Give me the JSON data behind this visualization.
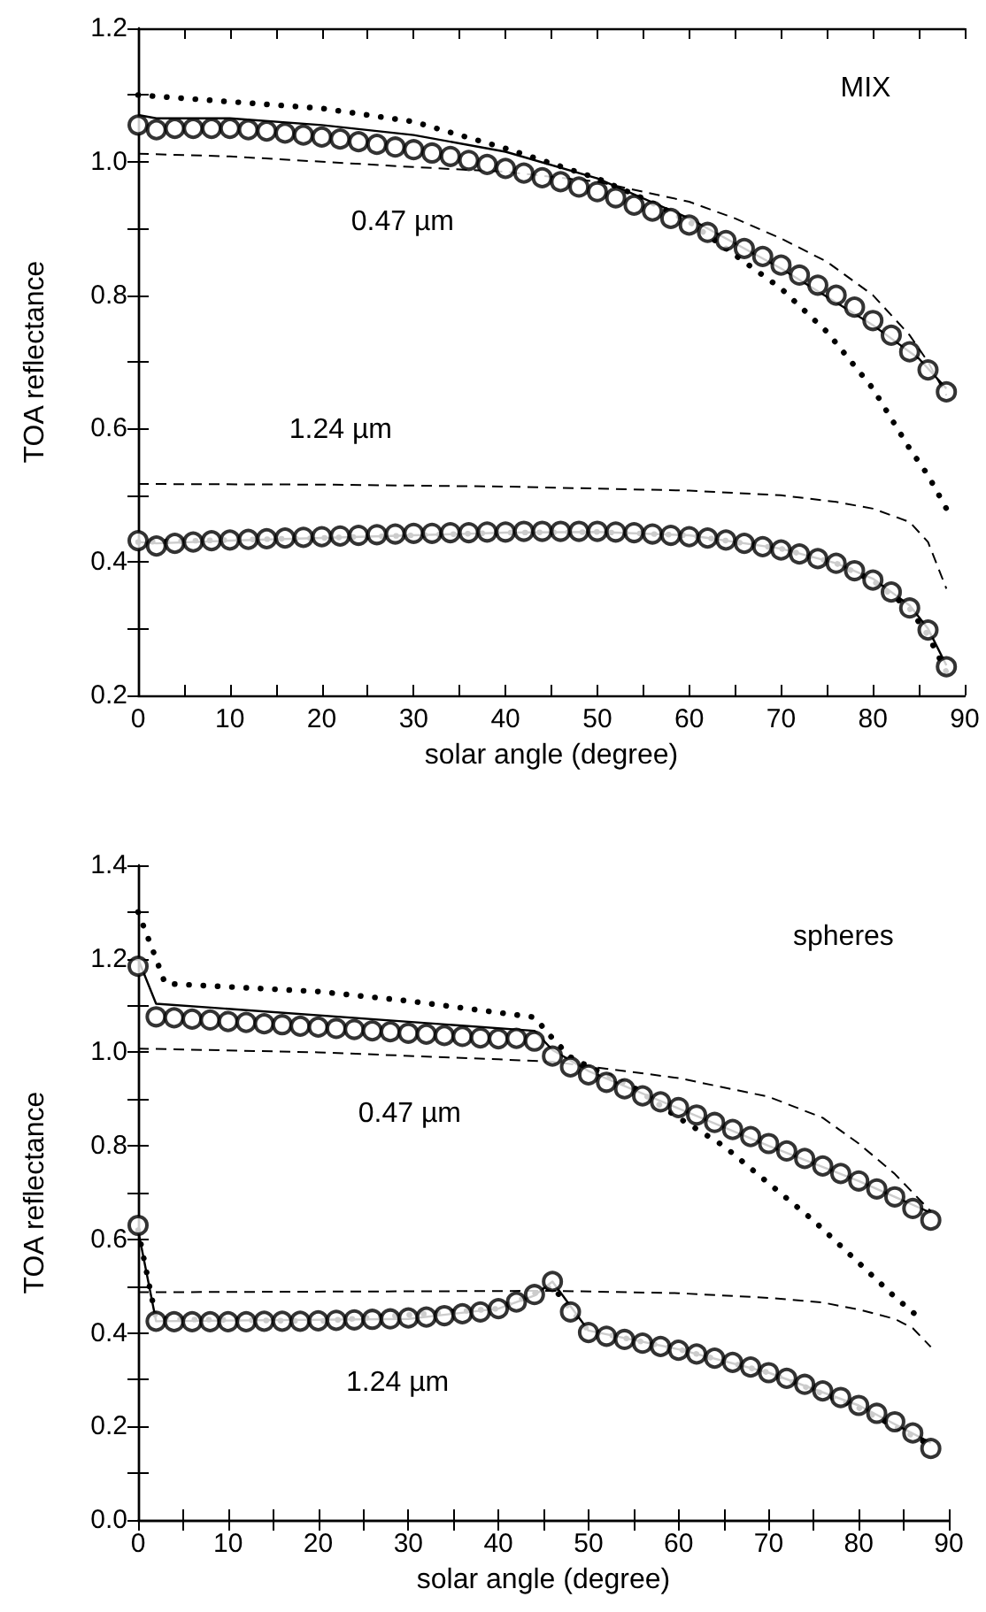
{
  "chart_data": [
    {
      "type": "line",
      "xlabel": "solar angle (degree)",
      "ylabel": "TOA reflectance",
      "xlim": [
        0,
        90
      ],
      "xticks": [
        0,
        {
          "value": 5,
          "label": null
        },
        10,
        {
          "value": 15,
          "label": null
        },
        20,
        {
          "value": 25,
          "label": null
        },
        30,
        {
          "value": 35,
          "label": null
        },
        40,
        {
          "value": 45,
          "label": null
        },
        50,
        {
          "value": 55,
          "label": null
        },
        60,
        {
          "value": 65,
          "label": null
        },
        70,
        {
          "value": 75,
          "label": null
        },
        80,
        {
          "value": 85,
          "label": null
        },
        90
      ],
      "ylim": [
        0.2,
        1.2
      ],
      "yticks": [
        0.2,
        {
          "value": 0.3,
          "label": null
        },
        0.4,
        {
          "value": 0.5,
          "label": null
        },
        0.6,
        {
          "value": 0.7,
          "label": null
        },
        0.8,
        {
          "value": 0.9,
          "label": null
        },
        {
          "value": 1,
          "label": "1.0"
        },
        {
          "value": 1.1,
          "label": null
        },
        1.2
      ],
      "annotations": [
        "MIX",
        "0.47 µm",
        "1.24 µm"
      ],
      "series": [
        {
          "type": "line",
          "line_style": "dotted",
          "color": "#000000",
          "x": [
            0,
            10,
            20,
            30,
            40,
            50,
            55,
            60,
            65,
            70,
            75,
            80,
            84,
            86,
            88
          ],
          "values": [
            1.1,
            1.09,
            1.08,
            1.06,
            1.02,
            0.975,
            0.945,
            0.91,
            0.86,
            0.81,
            0.745,
            0.66,
            0.57,
            0.53,
            0.48
          ]
        },
        {
          "type": "line",
          "line_style": "dashed",
          "color": "#000000",
          "x": [
            0,
            10,
            20,
            30,
            40,
            50,
            60,
            65,
            70,
            75,
            80,
            84,
            86,
            88
          ],
          "values": [
            1.012,
            1.008,
            1.0,
            0.992,
            0.985,
            0.97,
            0.94,
            0.915,
            0.885,
            0.85,
            0.8,
            0.74,
            0.7,
            0.65
          ]
        },
        {
          "type": "line",
          "line_style": "solid",
          "color": "#000000",
          "x": [
            0,
            2,
            10,
            20,
            30,
            40,
            50,
            60,
            70,
            80,
            85,
            88
          ],
          "values": [
            1.07,
            1.065,
            1.065,
            1.055,
            1.04,
            1.015,
            0.975,
            0.915,
            0.84,
            0.755,
            0.705,
            0.66
          ]
        },
        {
          "type": "scatter",
          "marker": "circle",
          "color": "#000000",
          "x": [
            0,
            2,
            4,
            6,
            8,
            10,
            12,
            14,
            16,
            18,
            20,
            22,
            24,
            26,
            28,
            30,
            32,
            34,
            36,
            38,
            40,
            42,
            44,
            46,
            48,
            50,
            52,
            54,
            56,
            58,
            60,
            62,
            64,
            66,
            68,
            70,
            72,
            74,
            76,
            78,
            80,
            82,
            84,
            86,
            88
          ],
          "values": [
            1.055,
            1.048,
            1.05,
            1.05,
            1.05,
            1.05,
            1.048,
            1.046,
            1.043,
            1.04,
            1.037,
            1.034,
            1.03,
            1.026,
            1.022,
            1.018,
            1.013,
            1.008,
            1.002,
            0.996,
            0.99,
            0.983,
            0.976,
            0.97,
            0.962,
            0.955,
            0.946,
            0.935,
            0.926,
            0.915,
            0.905,
            0.894,
            0.882,
            0.87,
            0.858,
            0.845,
            0.83,
            0.815,
            0.8,
            0.782,
            0.762,
            0.74,
            0.715,
            0.688,
            0.655
          ]
        },
        {
          "type": "line",
          "line_style": "dotted",
          "color": "#000000",
          "x": [
            0,
            10,
            20,
            30,
            40,
            50,
            60,
            70,
            76,
            80,
            84,
            86,
            88
          ],
          "values": [
            0.43,
            0.433,
            0.436,
            0.44,
            0.444,
            0.445,
            0.44,
            0.42,
            0.398,
            0.372,
            0.33,
            0.29,
            0.235
          ]
        },
        {
          "type": "line",
          "line_style": "dashed",
          "color": "#000000",
          "x": [
            0,
            20,
            40,
            60,
            70,
            76,
            80,
            84,
            86,
            88
          ],
          "values": [
            0.517,
            0.516,
            0.513,
            0.507,
            0.5,
            0.49,
            0.48,
            0.46,
            0.43,
            0.36
          ]
        },
        {
          "type": "line",
          "line_style": "solid",
          "color": "#000000",
          "x": [
            0,
            2,
            10,
            20,
            30,
            40,
            50,
            60,
            70,
            76,
            80,
            84,
            86,
            88
          ],
          "values": [
            0.43,
            0.428,
            0.432,
            0.436,
            0.44,
            0.444,
            0.445,
            0.44,
            0.42,
            0.398,
            0.375,
            0.335,
            0.3,
            0.245
          ]
        },
        {
          "type": "scatter",
          "marker": "circle",
          "color": "#000000",
          "x": [
            0,
            2,
            4,
            6,
            8,
            10,
            12,
            14,
            16,
            18,
            20,
            22,
            24,
            26,
            28,
            30,
            32,
            34,
            36,
            38,
            40,
            42,
            44,
            46,
            48,
            50,
            52,
            54,
            56,
            58,
            60,
            62,
            64,
            66,
            68,
            70,
            72,
            74,
            76,
            78,
            80,
            82,
            84,
            86,
            88
          ],
          "values": [
            0.432,
            0.424,
            0.428,
            0.43,
            0.432,
            0.433,
            0.434,
            0.435,
            0.436,
            0.437,
            0.438,
            0.439,
            0.44,
            0.441,
            0.442,
            0.443,
            0.443,
            0.444,
            0.444,
            0.445,
            0.445,
            0.446,
            0.446,
            0.446,
            0.446,
            0.446,
            0.445,
            0.444,
            0.442,
            0.44,
            0.438,
            0.436,
            0.433,
            0.428,
            0.423,
            0.418,
            0.412,
            0.405,
            0.398,
            0.387,
            0.373,
            0.355,
            0.331,
            0.298,
            0.243
          ]
        }
      ]
    },
    {
      "type": "line",
      "xlabel": "solar angle (degree)",
      "ylabel": "TOA reflectance",
      "xlim": [
        0,
        90
      ],
      "xticks": [
        0,
        {
          "value": 5,
          "label": null
        },
        10,
        {
          "value": 15,
          "label": null
        },
        20,
        {
          "value": 25,
          "label": null
        },
        30,
        {
          "value": 35,
          "label": null
        },
        40,
        {
          "value": 45,
          "label": null
        },
        50,
        {
          "value": 55,
          "label": null
        },
        60,
        {
          "value": 65,
          "label": null
        },
        70,
        {
          "value": 75,
          "label": null
        },
        80,
        {
          "value": 85,
          "label": null
        },
        90
      ],
      "ylim": [
        0,
        1.4
      ],
      "yticks": [
        {
          "value": 0,
          "label": "0.0"
        },
        {
          "value": 0.1,
          "label": null
        },
        0.2,
        {
          "value": 0.3,
          "label": null
        },
        0.4,
        {
          "value": 0.5,
          "label": null
        },
        0.6,
        {
          "value": 0.7,
          "label": null
        },
        0.8,
        {
          "value": 0.9,
          "label": null
        },
        {
          "value": 1,
          "label": "1.0"
        },
        {
          "value": 1.1,
          "label": null
        },
        1.2,
        {
          "value": 1.3,
          "label": null
        },
        1.4
      ],
      "annotations": [
        "spheres",
        "0.47 µm",
        "1.24 µm"
      ],
      "series": [
        {
          "type": "line",
          "line_style": "dotted",
          "color": "#000000",
          "x": [
            0,
            2,
            3,
            10,
            20,
            30,
            40,
            44,
            46,
            48,
            50,
            55,
            60,
            65,
            70,
            75,
            80,
            84,
            87
          ],
          "values": [
            1.3,
            1.2,
            1.147,
            1.14,
            1.13,
            1.11,
            1.085,
            1.075,
            1.03,
            0.99,
            0.97,
            0.925,
            0.86,
            0.8,
            0.72,
            0.64,
            0.55,
            0.477,
            0.428
          ]
        },
        {
          "type": "line",
          "line_style": "dashed",
          "color": "#000000",
          "x": [
            0,
            20,
            40,
            46,
            50,
            60,
            70,
            76,
            80,
            84,
            86,
            88
          ],
          "values": [
            1.008,
            1.0,
            0.985,
            0.98,
            0.97,
            0.945,
            0.905,
            0.86,
            0.805,
            0.74,
            0.7,
            0.66
          ]
        },
        {
          "type": "line",
          "line_style": "solid",
          "color": "#000000",
          "x": [
            0,
            2,
            44,
            46,
            50,
            60,
            70,
            80,
            88
          ],
          "values": [
            1.2,
            1.104,
            1.046,
            1.005,
            0.96,
            0.88,
            0.8,
            0.725,
            0.657
          ]
        },
        {
          "type": "scatter",
          "marker": "circle",
          "color": "#000000",
          "x": [
            0,
            2,
            4,
            6,
            8,
            10,
            12,
            14,
            16,
            18,
            20,
            22,
            24,
            26,
            28,
            30,
            32,
            34,
            36,
            38,
            40,
            42,
            44,
            46,
            48,
            50,
            52,
            54,
            56,
            58,
            60,
            62,
            64,
            66,
            68,
            70,
            72,
            74,
            76,
            78,
            80,
            82,
            84,
            86,
            88
          ],
          "values": [
            1.184,
            1.076,
            1.074,
            1.071,
            1.069,
            1.066,
            1.064,
            1.061,
            1.059,
            1.056,
            1.054,
            1.051,
            1.049,
            1.046,
            1.044,
            1.041,
            1.039,
            1.036,
            1.034,
            1.031,
            1.029,
            1.03,
            1.024,
            0.992,
            0.969,
            0.952,
            0.936,
            0.922,
            0.907,
            0.894,
            0.882,
            0.866,
            0.85,
            0.835,
            0.82,
            0.805,
            0.789,
            0.773,
            0.757,
            0.741,
            0.725,
            0.708,
            0.691,
            0.666,
            0.641
          ]
        },
        {
          "type": "line",
          "line_style": "dotted",
          "color": "#000000",
          "x": [
            0,
            2,
            20,
            40,
            46,
            48,
            50,
            60,
            70,
            80,
            88
          ],
          "values": [
            0.62,
            0.43,
            0.425,
            0.452,
            0.5,
            0.45,
            0.405,
            0.365,
            0.315,
            0.24,
            0.16
          ]
        },
        {
          "type": "line",
          "line_style": "dashed",
          "color": "#000000",
          "x": [
            0,
            46,
            60,
            70,
            76,
            80,
            84,
            86,
            88
          ],
          "values": [
            0.487,
            0.49,
            0.485,
            0.475,
            0.465,
            0.45,
            0.43,
            0.41,
            0.37
          ]
        },
        {
          "type": "line",
          "line_style": "solid",
          "color": "#000000",
          "x": [
            0,
            2,
            30,
            40,
            44,
            46,
            50,
            60,
            70,
            80,
            88
          ],
          "values": [
            0.62,
            0.425,
            0.43,
            0.452,
            0.48,
            0.51,
            0.405,
            0.365,
            0.315,
            0.245,
            0.165
          ]
        },
        {
          "type": "scatter",
          "marker": "circle",
          "color": "#000000",
          "x": [
            0,
            2,
            4,
            6,
            8,
            10,
            12,
            14,
            16,
            18,
            20,
            22,
            24,
            26,
            28,
            30,
            32,
            34,
            36,
            38,
            40,
            42,
            44,
            46,
            48,
            50,
            52,
            54,
            56,
            58,
            60,
            62,
            64,
            66,
            68,
            70,
            72,
            74,
            76,
            78,
            80,
            82,
            84,
            86,
            88
          ],
          "values": [
            0.63,
            0.425,
            0.424,
            0.424,
            0.424,
            0.424,
            0.424,
            0.425,
            0.425,
            0.425,
            0.426,
            0.427,
            0.428,
            0.429,
            0.43,
            0.432,
            0.434,
            0.437,
            0.441,
            0.445,
            0.452,
            0.466,
            0.482,
            0.51,
            0.445,
            0.401,
            0.393,
            0.386,
            0.378,
            0.371,
            0.363,
            0.355,
            0.346,
            0.337,
            0.327,
            0.315,
            0.303,
            0.29,
            0.276,
            0.262,
            0.245,
            0.228,
            0.21,
            0.186,
            0.153
          ]
        }
      ]
    }
  ]
}
